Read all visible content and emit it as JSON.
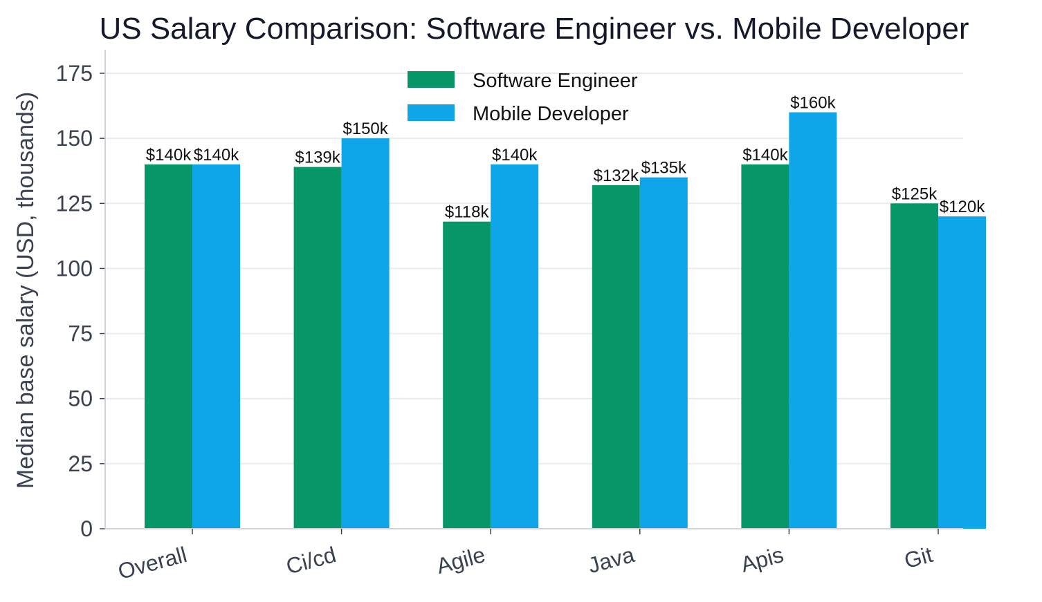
{
  "chart_data": {
    "type": "bar",
    "title": "US Salary Comparison: Software Engineer vs. Mobile Developer",
    "ylabel": "Median base salary (USD, thousands)",
    "xlabel": "",
    "categories": [
      "Overall",
      "Ci/cd",
      "Agile",
      "Java",
      "Apis",
      "Git"
    ],
    "series": [
      {
        "name": "Software Engineer",
        "values": [
          140,
          139,
          118,
          132,
          140,
          125
        ],
        "labels": [
          "$140k",
          "$139k",
          "$118k",
          "$132k",
          "$140k",
          "$125k"
        ],
        "color": "#069667"
      },
      {
        "name": "Mobile Developer",
        "values": [
          140,
          150,
          140,
          135,
          160,
          120
        ],
        "labels": [
          "$140k",
          "$150k",
          "$140k",
          "$135k",
          "$160k",
          "$120k"
        ],
        "color": "#0ea5e9"
      }
    ],
    "ylim": [
      0,
      175
    ],
    "yticks": [
      0,
      25,
      50,
      75,
      100,
      125,
      150,
      175
    ],
    "grid": true,
    "legend_position": "top-center"
  }
}
